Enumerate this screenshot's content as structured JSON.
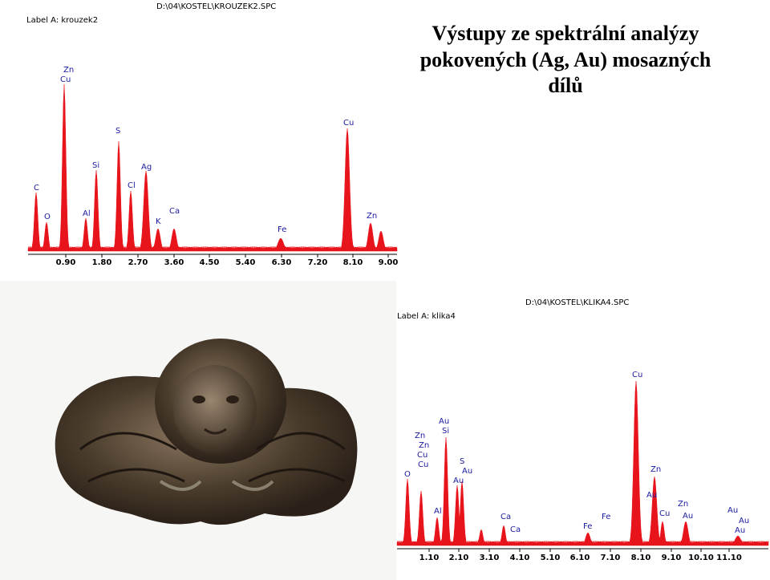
{
  "title": [
    "Výstupy ze spektrální analýzy",
    "pokovených (Ag, Au) mosazných",
    "dílů"
  ],
  "spectra": [
    {
      "file": "D:\\04\\KOSTEL\\KROUZEK2.SPC",
      "label": "Label A: krouzek2",
      "axis_labels": [
        "0.90",
        "1.80",
        "2.70",
        "3.60",
        "4.50",
        "5.40",
        "6.30",
        "7.20",
        "8.10",
        "9.00"
      ],
      "peak_labels": [
        "Zn",
        "Cu",
        "S",
        "Cu",
        "Si",
        "Ag",
        "C",
        "Cl",
        "Al",
        "O",
        "Ca",
        "K",
        "Fe",
        "Zn"
      ]
    },
    {
      "file": "D:\\04\\KOSTEL\\KLIKA4.SPC",
      "label": "Label A: klika4",
      "axis_labels": [
        "1.10",
        "2.10",
        "3.10",
        "4.10",
        "5.10",
        "6.10",
        "7.10",
        "8.10",
        "9.10",
        "10.10",
        "11.10"
      ],
      "peak_labels": [
        "Cu",
        "Au",
        "Si",
        "Zn",
        "Zn",
        "Cu",
        "Cu",
        "S",
        "Au",
        "Au",
        "O",
        "Zn",
        "Au",
        "Zn",
        "Cu",
        "Au",
        "Al",
        "Ca",
        "Ca",
        "Fe",
        "Fe",
        "Au",
        "Au",
        "Au"
      ]
    }
  ]
}
